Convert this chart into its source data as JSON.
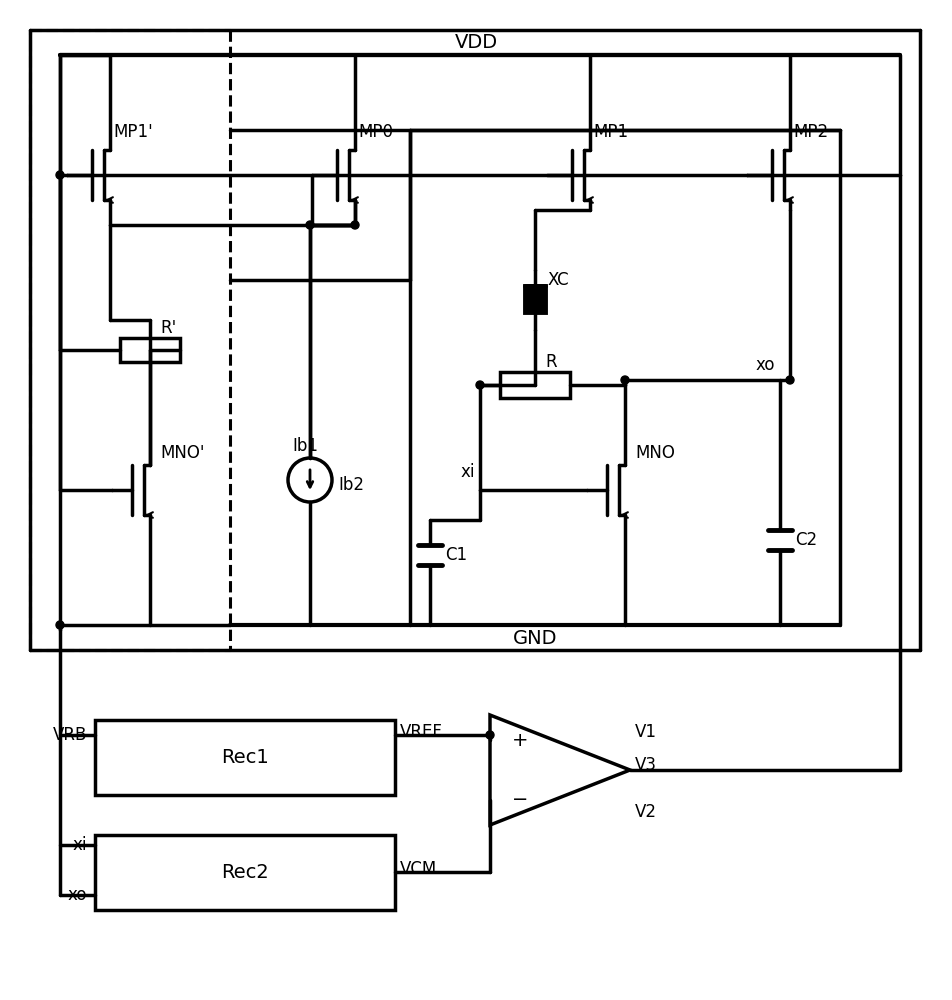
{
  "bg": "#ffffff",
  "lc": "#000000",
  "lw": 2.5,
  "fw": 9.52,
  "fh": 10.0,
  "dpi": 100,
  "labels": {
    "VDD": "VDD",
    "GND": "GND",
    "MP1p": "MP1'",
    "MP0": "MP0",
    "MP1": "MP1",
    "MP2": "MP2",
    "MN0p": "MNO'",
    "MN0": "MNO",
    "Rp": "R'",
    "R": "R",
    "XC": "XC",
    "Ib1": "Ib1",
    "Ib2": "Ib2",
    "C1": "C1",
    "C2": "C2",
    "xi": "xi",
    "xo": "xo",
    "VRB": "VRB",
    "VREF": "VREF",
    "VCM": "VCM",
    "Rec1": "Rec1",
    "Rec2": "Rec2",
    "V1": "V1",
    "V2": "V2",
    "V3": "V3"
  }
}
